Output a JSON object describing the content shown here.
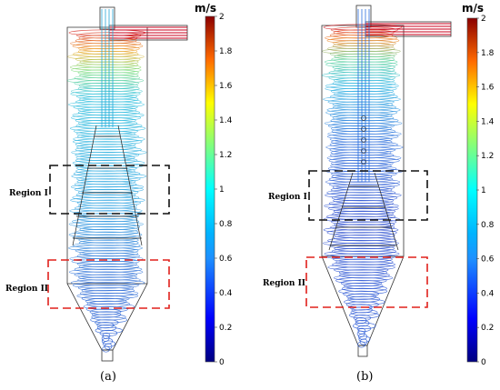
{
  "panels": [
    {
      "caption": "(a)",
      "region_labels": [
        "Region I",
        "Region II"
      ],
      "colorbar": {
        "unit": "m/s",
        "min": 0,
        "max": 2,
        "ticks": [
          "2",
          "1.8",
          "1.6",
          "1.4",
          "1.2",
          "1",
          "0.8",
          "0.6",
          "0.4",
          "0.2",
          "0"
        ]
      }
    },
    {
      "caption": "(b)",
      "region_labels": [
        "Region I",
        "Region II"
      ],
      "colorbar": {
        "unit": "m/s",
        "min": 0,
        "max": 2,
        "ticks": [
          "2",
          "1.8",
          "1.6",
          "1.4",
          "1.2",
          "1",
          "0.8",
          "0.6",
          "0.4",
          "0.2",
          "0"
        ]
      }
    }
  ],
  "colors": {
    "region_i_box": "#111111",
    "region_ii_box": "#e0201c",
    "high_velocity": "#c0001a",
    "mid_velocity": "#2ab4d8",
    "low_velocity": "#1a3dc9"
  }
}
